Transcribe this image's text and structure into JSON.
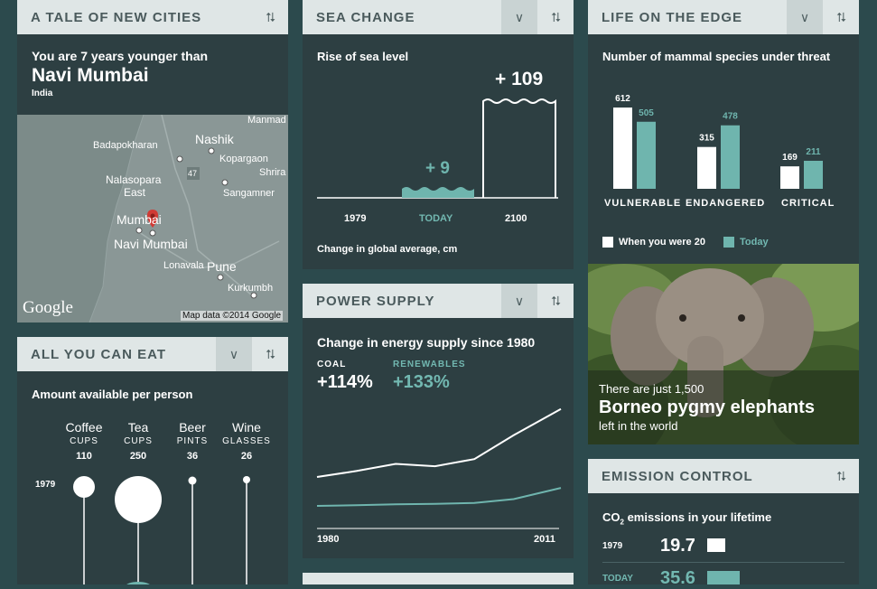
{
  "colors": {
    "teal": "#6fb5ae",
    "panel": "#2d3f42",
    "header": "#dfe6e6"
  },
  "cities": {
    "title": "A TALE OF NEW CITIES",
    "younger_text": "You are 7 years younger than",
    "city": "Navi Mumbai",
    "country": "India",
    "map": {
      "labels": [
        "Manmad",
        "Badapokharan",
        "Nashik",
        "Kopargaon",
        "Nalasopara",
        "East",
        "Shrira",
        "Sangamner",
        "Mumbai",
        "Navi Mumbai",
        "Lonavala",
        "Pune",
        "Kurkumbh"
      ],
      "road_number": "47",
      "attribution": "Map data ©2014 Google",
      "google": "Google"
    }
  },
  "eat": {
    "title": "ALL YOU CAN EAT",
    "subtitle": "Amount available per person",
    "year_label": "1979",
    "items": [
      {
        "name": "Coffee",
        "unit": "CUPS",
        "value": "110"
      },
      {
        "name": "Tea",
        "unit": "CUPS",
        "value": "250"
      },
      {
        "name": "Beer",
        "unit": "PINTS",
        "value": "36"
      },
      {
        "name": "Wine",
        "unit": "GLASSES",
        "value": "26"
      }
    ]
  },
  "sea": {
    "title": "SEA CHANGE",
    "subtitle": "Rise of sea level",
    "today_value": "+ 9",
    "future_value": "+ 109",
    "labels": [
      "1979",
      "TODAY",
      "2100"
    ],
    "footer": "Change in global average, cm"
  },
  "power": {
    "title": "POWER SUPPLY",
    "subtitle": "Change in energy supply since 1980",
    "coal_label": "COAL",
    "coal_value": "+114%",
    "renew_label": "RENEWABLES",
    "renew_value": "+133%",
    "x_start": "1980",
    "x_end": "2011"
  },
  "chart_data": {
    "type": "line",
    "x": [
      1980,
      1985,
      1990,
      1995,
      2000,
      2005,
      2011
    ],
    "series": [
      {
        "name": "COAL",
        "values": [
          0,
          10,
          22,
          18,
          30,
          70,
          114
        ]
      },
      {
        "name": "RENEWABLES",
        "values": [
          0,
          5,
          12,
          15,
          22,
          50,
          133
        ]
      }
    ]
  },
  "edge": {
    "title": "LIFE ON THE EDGE",
    "subtitle": "Number of mammal species under threat",
    "groups": [
      {
        "name": "VULNERABLE",
        "then": 612,
        "now": 505
      },
      {
        "name": "ENDANGERED",
        "then": 315,
        "now": 478
      },
      {
        "name": "CRITICAL",
        "then": 169,
        "now": 211
      }
    ],
    "legend_then": "When you were 20",
    "legend_now": "Today"
  },
  "elephant": {
    "line1": "There are just 1,500",
    "line2": "Borneo pygmy elephants",
    "line3": "left in the world"
  },
  "emission": {
    "title": "EMISSION CONTROL",
    "subtitle_prefix": "CO",
    "subtitle_sub": "2",
    "subtitle_rest": " emissions in your lifetime",
    "rows": [
      {
        "year": "1979",
        "value": "19.7"
      },
      {
        "year": "TODAY",
        "value": "35.6"
      }
    ]
  }
}
